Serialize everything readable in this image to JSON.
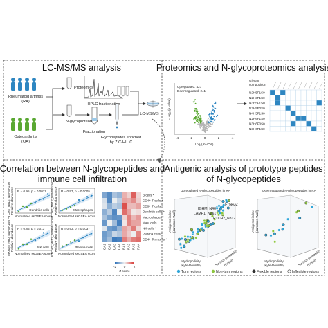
{
  "panels": {
    "lcms": {
      "title": "LC-MS/MS analysis",
      "ra_label": "Rheumatoid arthritis",
      "ra_abbr": "(RA)",
      "oa_label": "Osteoarthritis",
      "oa_abbr": "(OA)",
      "proteomics": "Proteomics",
      "hplc": "HPLC fractionation",
      "nglyco": "N-glycoproteomics",
      "fractionation": "Fractionation",
      "glyco_enriched_1": "Glycopeptides enriched",
      "glyco_enriched_2": "by ZIC-HILIC",
      "lcmsms": "LC-MS/MS"
    },
    "proteomics": {
      "title": "Proteomics and N-glycoproteomics analysis",
      "upregulated": "Upregulated: 427",
      "downregulated": "Downregulated: 241",
      "xlabel": "Log₂(RA/OA)",
      "ylabel": "−Log₁₀(p value)",
      "xticks": [
        "-4",
        "-2",
        "0",
        "2",
        "4"
      ],
      "glycan_header_1": "Glycan",
      "glycan_header_2": "composition",
      "glycans": [
        "N2H5F1S0",
        "N2H3F1S0",
        "N3H5F1S0",
        "N2H5F0S0",
        "N4H5F1S0",
        "N2H6F1S0",
        "N3H6F0S0",
        "N3H6F1S0"
      ]
    },
    "correlation": {
      "title_1": "Correlation between N-glycopeptides and",
      "title_2": "immune cell infiltration",
      "plots": [
        {
          "stat": "R = 0.95, p = 0.0011",
          "cell": "Dendritic cells",
          "ylabel": "PTCH2_N812_N4H5F1S0"
        },
        {
          "stat": "R = 0.97, p = 0.0005",
          "cell": "Macrophages",
          "ylabel": "PTCH2_N812_N4H5F1S0"
        },
        {
          "stat": "R = 0.86, p = 0.013",
          "cell": "NK cells",
          "ylabel": "MXRA5_N60_N4H5F1S0"
        },
        {
          "stat": "R = 0.93, p = 0.0037",
          "cell": "Plasma cells",
          "ylabel": "PTCH2_N812_N4H5F1S0"
        }
      ],
      "xlabel": "Normalized ssGSEA score",
      "ylabel_right": "Relative abundance",
      "heatmap_rows": [
        "B cells *",
        "CD4+ T cells *",
        "CD8+ T cells *",
        "Dendritic cells *",
        "Macrophages *",
        "Mast cells",
        "NK cells *",
        "Plasma cells *",
        "CD4+ Tcm cells *"
      ],
      "heatmap_cols": [
        "OA1",
        "OA2",
        "OA3",
        "OA4",
        "RA1",
        "RA2",
        "RA3",
        "RA4"
      ],
      "zscore_label": "Z score",
      "zscore_ticks": [
        "-2",
        "0",
        "2"
      ],
      "colors": {
        "high": "#d7332f",
        "mid": "#f2f2f2",
        "low": "#2c6fb7"
      }
    },
    "antigenic": {
      "title_1": "Antigenic analysis of prototype peptides",
      "title_2": "of N-glycopeptides",
      "left_title": "Upregulated N-glycopeptides in RA",
      "right_title": "Downregulated N-glycopeptides in RA",
      "peptides": [
        "TF_N432",
        "IGHM_N46",
        "LAMP1_N261",
        "PTCH2_N812"
      ],
      "z_label_1": "Antigenic index",
      "z_label_2": "(Jameson-Wolf)",
      "x_label_1": "Hydrophilicity",
      "x_label_2": "(Kyte-Doolittle)",
      "y_label_1": "Surface probability",
      "y_label_2": "(Emini)",
      "legend": [
        {
          "label": "Turn regions",
          "color": "#2fa6d9"
        },
        {
          "label": "Non-turn regions",
          "color": "#8dc63f"
        },
        {
          "label": "Flexible regions",
          "color": "#333333"
        },
        {
          "label": "Inflexible regions",
          "color": "#ffffff"
        }
      ]
    }
  }
}
